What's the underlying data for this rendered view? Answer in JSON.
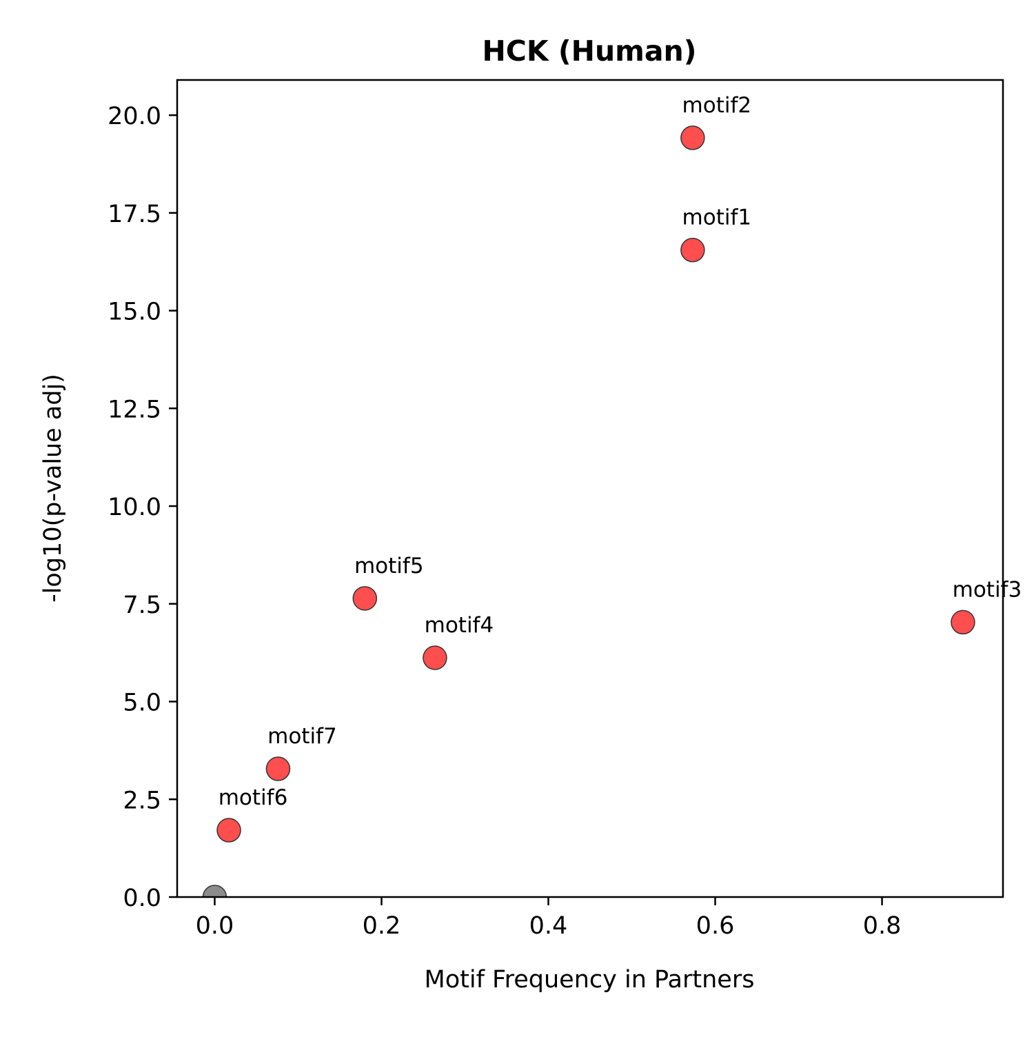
{
  "chart_data": {
    "type": "scatter",
    "title": "HCK (Human)",
    "xlabel": "Motif Frequency in Partners",
    "ylabel": "-log10(p-value adj)",
    "xlim": [
      -0.045,
      0.945
    ],
    "ylim": [
      0,
      20.9
    ],
    "x_ticks": [
      0.0,
      0.2,
      0.4,
      0.6,
      0.8
    ],
    "x_tick_labels": [
      "0.0",
      "0.2",
      "0.4",
      "0.6",
      "0.8"
    ],
    "y_ticks": [
      0.0,
      2.5,
      5.0,
      7.5,
      10.0,
      12.5,
      15.0,
      17.5,
      20.0
    ],
    "y_tick_labels": [
      "0.0",
      "2.5",
      "5.0",
      "7.5",
      "10.0",
      "12.5",
      "15.0",
      "17.5",
      "20.0"
    ],
    "grid": false,
    "legend": "none",
    "colors": {
      "significant": "#ff3b3b",
      "nonsignificant": "#808080",
      "edge": "#333333"
    },
    "points": [
      {
        "label": "motif1",
        "x": 0.573,
        "y": 16.55,
        "group": "significant"
      },
      {
        "label": "motif2",
        "x": 0.573,
        "y": 19.42,
        "group": "significant"
      },
      {
        "label": "motif3",
        "x": 0.897,
        "y": 7.03,
        "group": "significant"
      },
      {
        "label": "motif4",
        "x": 0.264,
        "y": 6.12,
        "group": "significant"
      },
      {
        "label": "motif5",
        "x": 0.18,
        "y": 7.64,
        "group": "significant"
      },
      {
        "label": "motif6",
        "x": 0.017,
        "y": 1.71,
        "group": "significant"
      },
      {
        "label": "motif7",
        "x": 0.076,
        "y": 3.28,
        "group": "significant"
      },
      {
        "label": "",
        "x": 0.0,
        "y": 0.0,
        "group": "nonsignificant"
      }
    ]
  }
}
